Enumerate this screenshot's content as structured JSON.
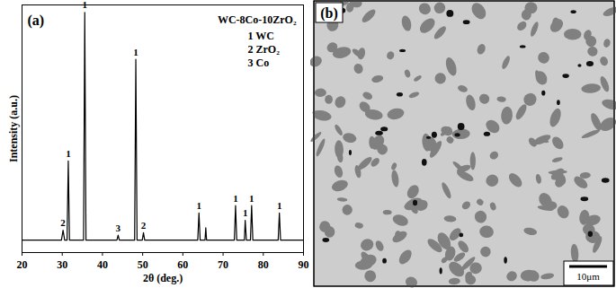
{
  "chart_data": {
    "type": "line",
    "panel_label": "(a)",
    "title": "WC-8Co-10ZrO₂",
    "x_label": "2θ (deg.)",
    "y_label": "Intensity (a.u.)",
    "xlim": [
      20,
      90
    ],
    "xticks": [
      20,
      30,
      40,
      50,
      60,
      70,
      80,
      90
    ],
    "ylim": [
      0,
      100
    ],
    "tick_labels": "x",
    "color": "#000000",
    "x": [
      20,
      29.8,
      30.2,
      30.6,
      31.2,
      31.5,
      31.8,
      35.3,
      35.6,
      35.9,
      43.6,
      43.9,
      44.2,
      48.0,
      48.3,
      48.6,
      49.9,
      50.2,
      50.5,
      63.7,
      64.0,
      64.3,
      65.5,
      65.7,
      65.9,
      72.8,
      73.1,
      73.4,
      75.3,
      75.5,
      75.8,
      76.8,
      77.1,
      77.4,
      83.7,
      84.0,
      84.3,
      90
    ],
    "values": [
      5,
      5,
      9,
      5,
      5,
      37,
      5,
      5,
      97,
      5,
      5,
      7,
      5,
      5,
      78,
      5,
      5,
      8,
      5,
      5,
      16,
      5,
      5,
      10,
      5,
      5,
      19,
      5,
      5,
      13,
      5,
      5,
      19,
      5,
      5,
      16,
      5,
      5
    ],
    "peak_labels": [
      {
        "x": 30.2,
        "y": 9,
        "label": "2"
      },
      {
        "x": 31.5,
        "y": 37,
        "label": "1"
      },
      {
        "x": 35.6,
        "y": 97,
        "label": "1"
      },
      {
        "x": 43.9,
        "y": 7,
        "label": "3"
      },
      {
        "x": 48.3,
        "y": 78,
        "label": "1"
      },
      {
        "x": 50.2,
        "y": 8,
        "label": "2"
      },
      {
        "x": 64.0,
        "y": 16,
        "label": "1"
      },
      {
        "x": 73.1,
        "y": 19,
        "label": "1"
      },
      {
        "x": 75.5,
        "y": 13,
        "label": "1"
      },
      {
        "x": 77.1,
        "y": 19,
        "label": "1"
      },
      {
        "x": 84.0,
        "y": 16,
        "label": "1"
      }
    ],
    "legend_entries": [
      {
        "number": "1",
        "name": "WC"
      },
      {
        "number": "2",
        "name": "ZrO₂"
      },
      {
        "number": "3",
        "name": "Co"
      }
    ]
  },
  "image": {
    "panel_label": "(b)",
    "scale_bar": "10μm"
  }
}
